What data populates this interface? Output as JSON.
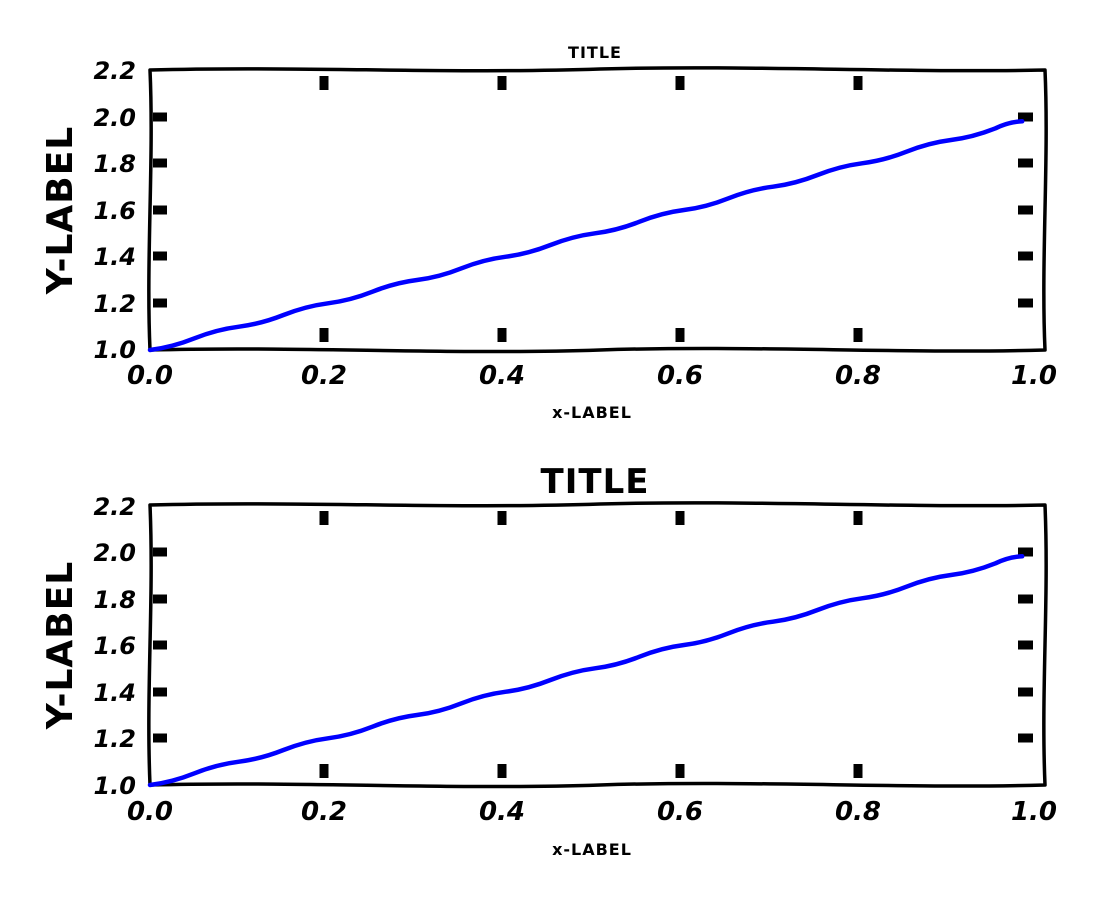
{
  "chart_data": [
    {
      "type": "line",
      "title": "TITLE",
      "xlabel": "x-LABEL",
      "ylabel": "Y-LABEL",
      "xlim": [
        0.0,
        1.0
      ],
      "ylim": [
        1.0,
        2.2
      ],
      "xticks": [
        "0.0",
        "0.2",
        "0.4",
        "0.6",
        "0.8",
        "1.0"
      ],
      "yticks": [
        "1.0",
        "1.2",
        "1.4",
        "1.6",
        "1.8",
        "2.0",
        "2.2"
      ],
      "grid": false,
      "series": [
        {
          "color": "#0000ff",
          "x": [
            0.0,
            0.05,
            0.1,
            0.15,
            0.2,
            0.25,
            0.3,
            0.35,
            0.4,
            0.45,
            0.5,
            0.55,
            0.6,
            0.65,
            0.7,
            0.75,
            0.8,
            0.85,
            0.9,
            0.95,
            0.98
          ],
          "y": [
            1.0,
            1.05,
            1.1,
            1.15,
            1.2,
            1.25,
            1.3,
            1.35,
            1.4,
            1.45,
            1.5,
            1.55,
            1.6,
            1.65,
            1.7,
            1.75,
            1.8,
            1.85,
            1.9,
            1.95,
            1.98
          ]
        }
      ]
    },
    {
      "type": "line",
      "title": "TITLE",
      "xlabel": "x-LABEL",
      "ylabel": "Y-LABEL",
      "xlim": [
        0.0,
        1.0
      ],
      "ylim": [
        1.0,
        2.2
      ],
      "xticks": [
        "0.0",
        "0.2",
        "0.4",
        "0.6",
        "0.8",
        "1.0"
      ],
      "yticks": [
        "1.0",
        "1.2",
        "1.4",
        "1.6",
        "1.8",
        "2.0",
        "2.2"
      ],
      "grid": false,
      "series": [
        {
          "color": "#0000ff",
          "x": [
            0.0,
            0.05,
            0.1,
            0.15,
            0.2,
            0.25,
            0.3,
            0.35,
            0.4,
            0.45,
            0.5,
            0.55,
            0.6,
            0.65,
            0.7,
            0.75,
            0.8,
            0.85,
            0.9,
            0.95,
            0.98
          ],
          "y": [
            1.0,
            1.05,
            1.1,
            1.15,
            1.2,
            1.25,
            1.3,
            1.35,
            1.4,
            1.45,
            1.5,
            1.55,
            1.6,
            1.65,
            1.7,
            1.75,
            1.8,
            1.85,
            1.9,
            1.95,
            1.98
          ]
        }
      ]
    }
  ]
}
